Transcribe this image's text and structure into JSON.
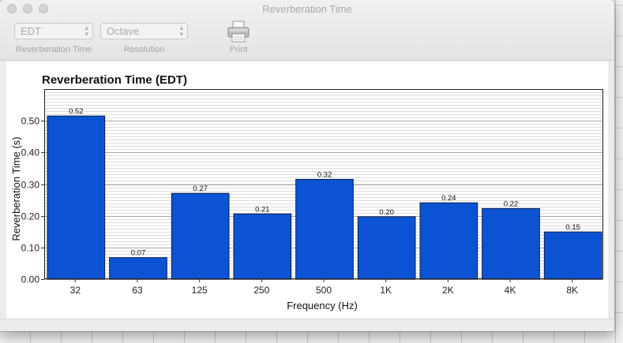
{
  "window": {
    "title": "Reverberation Time"
  },
  "toolbar": {
    "rt_select": {
      "value": "EDT",
      "label": "Reverberation Time"
    },
    "resolution_select": {
      "value": "Octave",
      "label": "Resolution"
    },
    "print": {
      "label": "Print",
      "icon": "printer-icon"
    }
  },
  "chart_data": {
    "type": "bar",
    "title": "Reverberation Time (EDT)",
    "xlabel": "Frequency (Hz)",
    "ylabel": "Reverberation Time (s)",
    "categories": [
      "32",
      "63",
      "125",
      "250",
      "500",
      "1K",
      "2K",
      "4K",
      "8K"
    ],
    "values": [
      0.515,
      0.068,
      0.271,
      0.206,
      0.315,
      0.197,
      0.241,
      0.223,
      0.149
    ],
    "value_labels": [
      "0.52",
      "0.07",
      "0.27",
      "0.21",
      "0.32",
      "0.20",
      "0.24",
      "0.22",
      "0.15"
    ],
    "ylim": [
      0,
      0.6
    ],
    "yticks": [
      "0.00",
      "0.10",
      "0.20",
      "0.30",
      "0.40",
      "0.50"
    ],
    "grid": true,
    "colors": {
      "bar": "#0c53d4",
      "bar_stroke": "#0a1f4a"
    }
  }
}
